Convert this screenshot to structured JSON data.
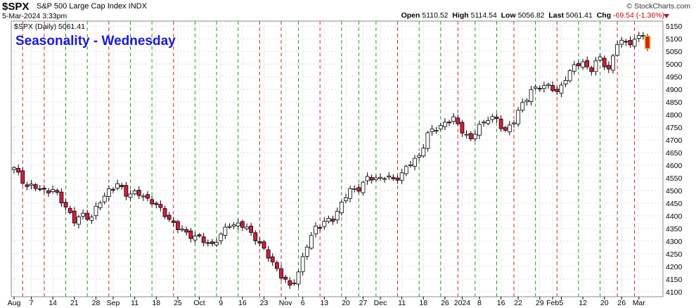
{
  "header": {
    "symbol": "$SPX",
    "description": "S&P 500 Large Cap Index INDX",
    "date": "5-Mar-2024 3:33pm",
    "brand": "© StockCharts.com",
    "open_label": "Open",
    "open": "5110.52",
    "high_label": "High",
    "high": "5114.54",
    "low_label": "Low",
    "low": "5056.82",
    "last_label": "Last",
    "last": "5061.41",
    "chg_label": "Chg",
    "chg": "-69.54 (-1.36%)"
  },
  "overlay_title": "Seasonality - Wednesday",
  "legend": "$SPX (Daily) 5061.41",
  "colors": {
    "up_fill": "#ffffff",
    "candle_outline": "#000000",
    "down_fill": "#d81c3c",
    "red_line": "#d62020",
    "green_line": "#1e9a1e",
    "title": "#1a1adc",
    "grid": "#dddddd"
  },
  "chart_data": {
    "type": "candlestick",
    "title": "Seasonality - Wednesday",
    "ylim": [
      4080,
      5170
    ],
    "yticks": [
      4100,
      4150,
      4200,
      4250,
      4300,
      4350,
      4400,
      4450,
      4500,
      4550,
      4600,
      4650,
      4700,
      4750,
      4800,
      4850,
      4900,
      4950,
      5000,
      5050,
      5100,
      5150
    ],
    "x_tick_labels": [
      {
        "i": 0,
        "label": "Aug"
      },
      {
        "i": 4,
        "label": "7"
      },
      {
        "i": 9,
        "label": "14"
      },
      {
        "i": 14,
        "label": "21"
      },
      {
        "i": 19,
        "label": "28"
      },
      {
        "i": 23,
        "label": "Sep"
      },
      {
        "i": 28,
        "label": "11"
      },
      {
        "i": 33,
        "label": "18"
      },
      {
        "i": 38,
        "label": "25"
      },
      {
        "i": 43,
        "label": "Oct"
      },
      {
        "i": 48,
        "label": "9"
      },
      {
        "i": 53,
        "label": "16"
      },
      {
        "i": 58,
        "label": "23"
      },
      {
        "i": 63,
        "label": "Nov"
      },
      {
        "i": 67,
        "label": "6"
      },
      {
        "i": 72,
        "label": "13"
      },
      {
        "i": 77,
        "label": "20"
      },
      {
        "i": 81,
        "label": "27"
      },
      {
        "i": 85,
        "label": "Dec"
      },
      {
        "i": 90,
        "label": "11"
      },
      {
        "i": 95,
        "label": "18"
      },
      {
        "i": 100,
        "label": "26"
      },
      {
        "i": 104,
        "label": "2024"
      },
      {
        "i": 108,
        "label": "8"
      },
      {
        "i": 113,
        "label": "16"
      },
      {
        "i": 117,
        "label": "22"
      },
      {
        "i": 122,
        "label": "29"
      },
      {
        "i": 125,
        "label": "Feb"
      },
      {
        "i": 127,
        "label": "5"
      },
      {
        "i": 132,
        "label": "12"
      },
      {
        "i": 137,
        "label": "20"
      },
      {
        "i": 141,
        "label": "26"
      },
      {
        "i": 145,
        "label": "Mar"
      }
    ],
    "wednesday_markers": [
      {
        "i": 2,
        "type": "red"
      },
      {
        "i": 7,
        "type": "red"
      },
      {
        "i": 12,
        "type": "green"
      },
      {
        "i": 17,
        "type": "green"
      },
      {
        "i": 22,
        "type": "red"
      },
      {
        "i": 27,
        "type": "green"
      },
      {
        "i": 32,
        "type": "green"
      },
      {
        "i": 37,
        "type": "red"
      },
      {
        "i": 42,
        "type": "green"
      },
      {
        "i": 47,
        "type": "green"
      },
      {
        "i": 52,
        "type": "green"
      },
      {
        "i": 57,
        "type": "red"
      },
      {
        "i": 62,
        "type": "red"
      },
      {
        "i": 66,
        "type": "green"
      },
      {
        "i": 71,
        "type": "red"
      },
      {
        "i": 76,
        "type": "green"
      },
      {
        "i": 80,
        "type": "green"
      },
      {
        "i": 84,
        "type": "green"
      },
      {
        "i": 89,
        "type": "red"
      },
      {
        "i": 94,
        "type": "green"
      },
      {
        "i": 99,
        "type": "green"
      },
      {
        "i": 103,
        "type": "red"
      },
      {
        "i": 107,
        "type": "green"
      },
      {
        "i": 112,
        "type": "green"
      },
      {
        "i": 116,
        "type": "red"
      },
      {
        "i": 121,
        "type": "green"
      },
      {
        "i": 126,
        "type": "red"
      },
      {
        "i": 131,
        "type": "green"
      },
      {
        "i": 136,
        "type": "green"
      },
      {
        "i": 140,
        "type": "red"
      },
      {
        "i": 144,
        "type": "red"
      }
    ],
    "anchors": [
      [
        0,
        4585
      ],
      [
        3,
        4520
      ],
      [
        6,
        4505
      ],
      [
        9,
        4500
      ],
      [
        12,
        4440
      ],
      [
        14,
        4375
      ],
      [
        16,
        4405
      ],
      [
        18,
        4395
      ],
      [
        20,
        4455
      ],
      [
        22,
        4505
      ],
      [
        24,
        4520
      ],
      [
        26,
        4490
      ],
      [
        28,
        4490
      ],
      [
        30,
        4475
      ],
      [
        32,
        4460
      ],
      [
        34,
        4420
      ],
      [
        36,
        4390
      ],
      [
        38,
        4350
      ],
      [
        40,
        4330
      ],
      [
        42,
        4320
      ],
      [
        44,
        4298
      ],
      [
        46,
        4290
      ],
      [
        48,
        4320
      ],
      [
        50,
        4370
      ],
      [
        52,
        4365
      ],
      [
        54,
        4350
      ],
      [
        56,
        4315
      ],
      [
        58,
        4260
      ],
      [
        60,
        4220
      ],
      [
        62,
        4160
      ],
      [
        64,
        4120
      ],
      [
        66,
        4178
      ],
      [
        68,
        4280
      ],
      [
        70,
        4360
      ],
      [
        72,
        4370
      ],
      [
        74,
        4390
      ],
      [
        76,
        4450
      ],
      [
        78,
        4500
      ],
      [
        80,
        4512
      ],
      [
        82,
        4545
      ],
      [
        84,
        4550
      ],
      [
        86,
        4555
      ],
      [
        88,
        4540
      ],
      [
        90,
        4570
      ],
      [
        92,
        4605
      ],
      [
        94,
        4640
      ],
      [
        96,
        4720
      ],
      [
        98,
        4748
      ],
      [
        100,
        4768
      ],
      [
        102,
        4782
      ],
      [
        104,
        4742
      ],
      [
        106,
        4695
      ],
      [
        108,
        4760
      ],
      [
        110,
        4785
      ],
      [
        112,
        4778
      ],
      [
        114,
        4738
      ],
      [
        116,
        4770
      ],
      [
        118,
        4850
      ],
      [
        120,
        4890
      ],
      [
        122,
        4910
      ],
      [
        124,
        4920
      ],
      [
        126,
        4880
      ],
      [
        128,
        4950
      ],
      [
        130,
        4990
      ],
      [
        132,
        5005
      ],
      [
        134,
        4980
      ],
      [
        136,
        5022
      ],
      [
        138,
        4980
      ],
      [
        140,
        5080
      ],
      [
        142,
        5090
      ],
      [
        144,
        5090
      ],
      [
        146,
        5120
      ],
      [
        147,
        5061
      ]
    ]
  }
}
